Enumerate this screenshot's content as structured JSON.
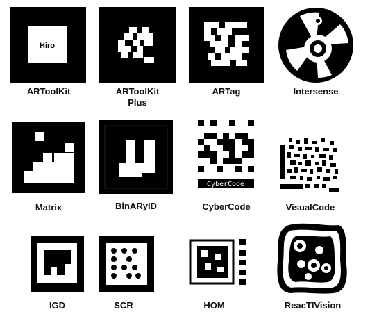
{
  "markers": [
    {
      "label": "ARToolKit",
      "inner_text": "Hiro"
    },
    {
      "label": "ARToolKit",
      "label2": "Plus"
    },
    {
      "label": "ARTag"
    },
    {
      "label": "Intersense"
    },
    {
      "label": "Matrix"
    },
    {
      "label": "BinARyID"
    },
    {
      "label": "CyberCode",
      "inner_text": "CyberCode"
    },
    {
      "label": "VisualCode"
    },
    {
      "label": "IGD"
    },
    {
      "label": "SCR"
    },
    {
      "label": "HOM"
    },
    {
      "label": "ReacTIVision"
    }
  ],
  "colors": {
    "marker": "#000000",
    "background": "#ffffff",
    "label": "#111111"
  }
}
